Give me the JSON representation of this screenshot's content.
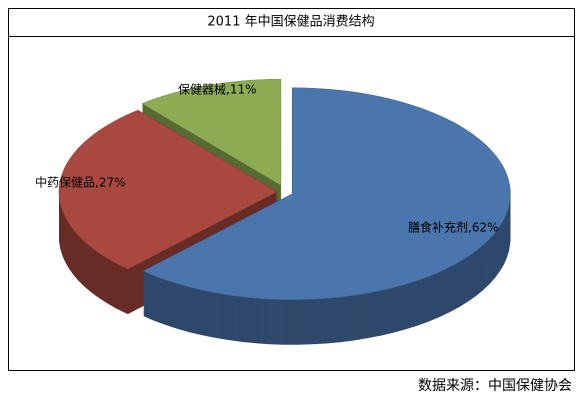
{
  "chart_data": {
    "type": "pie",
    "title": "2011 年中国保健品消费结构",
    "values": [
      62,
      27,
      11
    ],
    "value_labels": [
      "膳食补充剂,62%",
      "中药保健品,27%",
      "保健器械,11%"
    ],
    "colors": [
      "#4a75ad",
      "#a8483f",
      "#8dab52"
    ]
  },
  "source": "数据来源：中国保健协会"
}
